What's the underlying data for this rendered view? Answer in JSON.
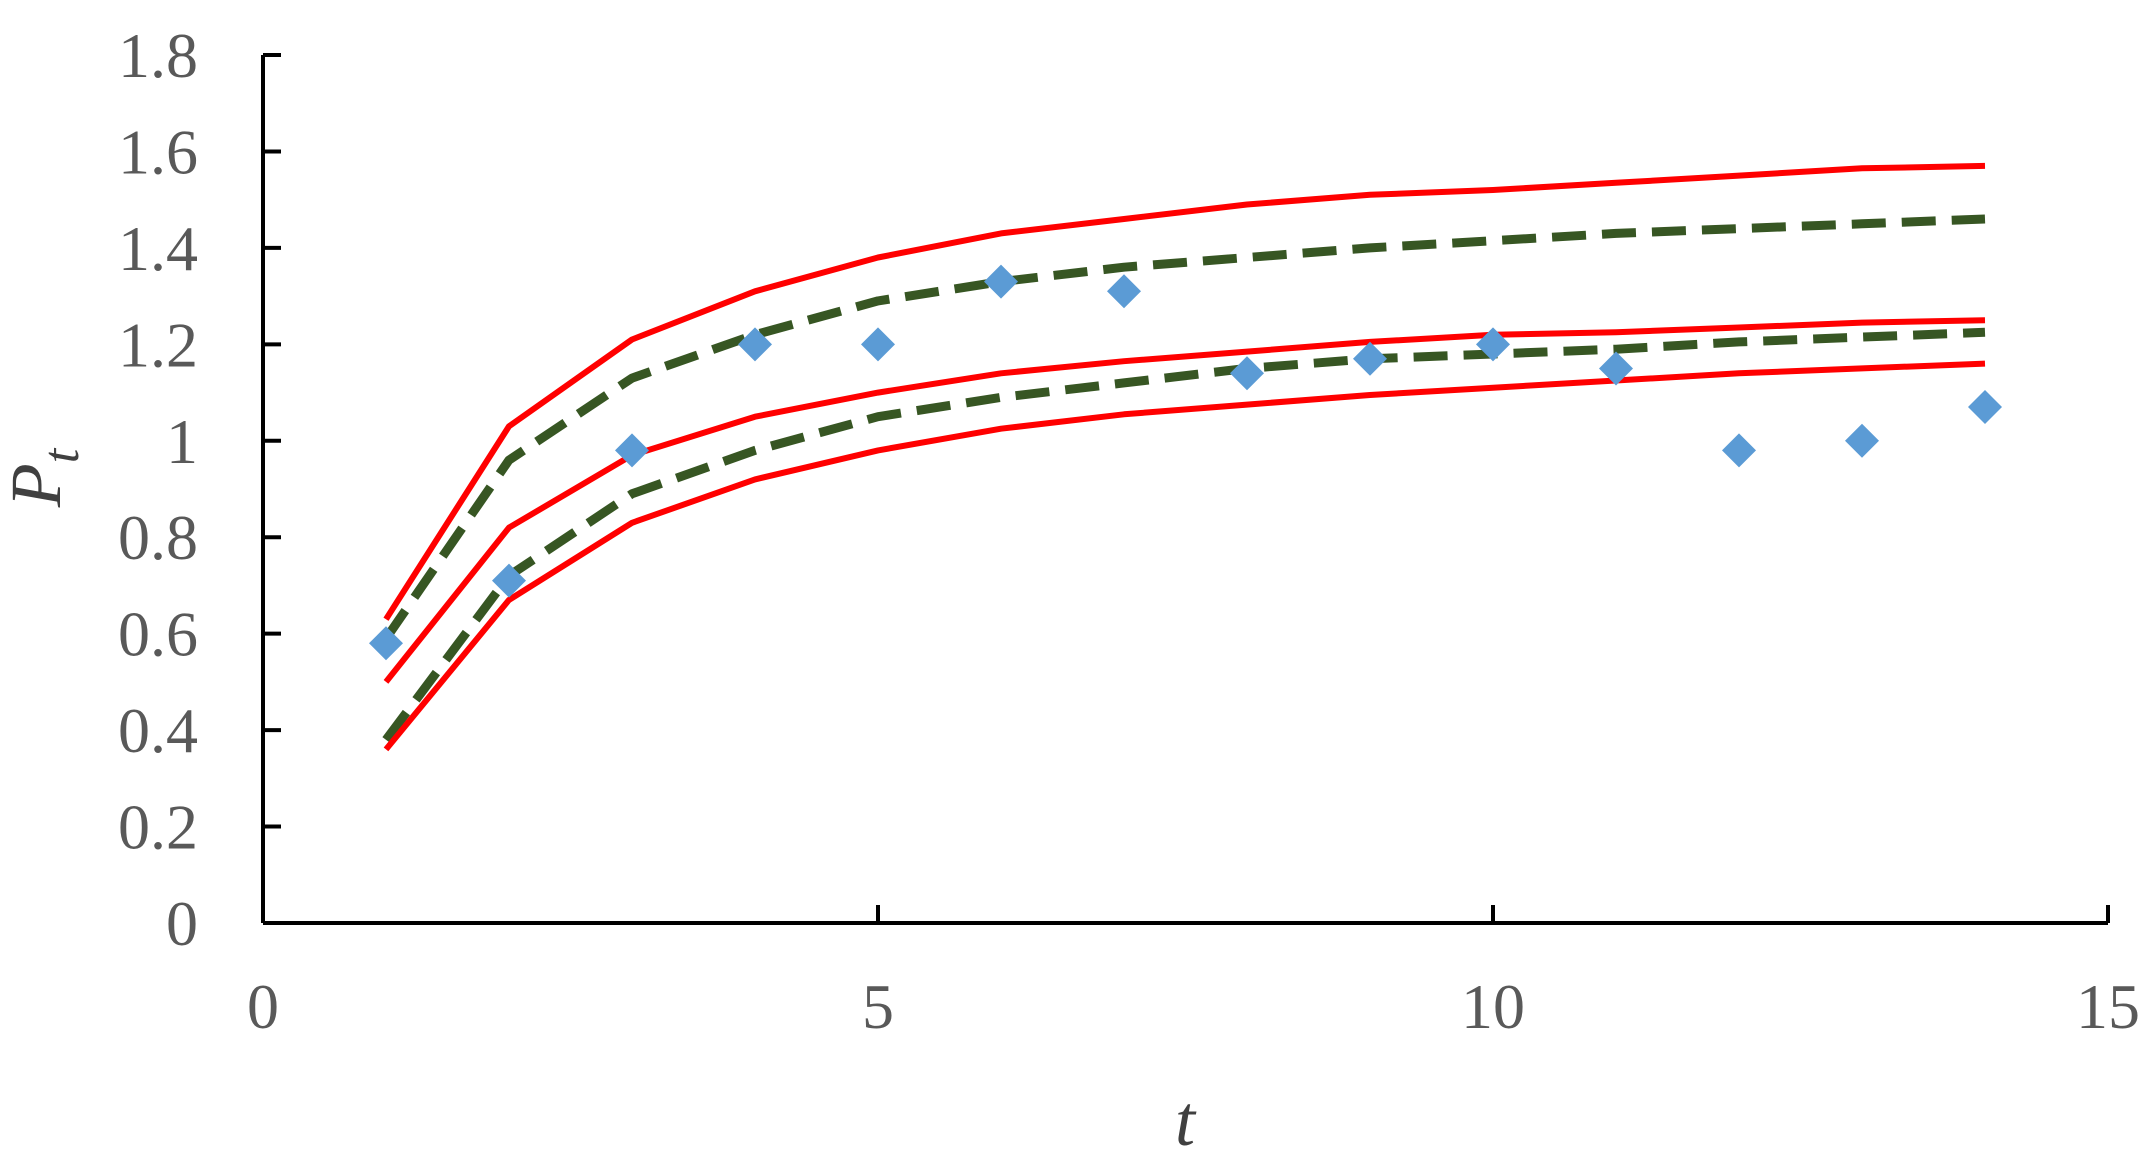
{
  "chart_data": {
    "type": "line",
    "title": "",
    "xlabel": "t",
    "ylabel": {
      "base": "P",
      "subscript": "t"
    },
    "xlim": [
      0,
      15
    ],
    "ylim": [
      0,
      1.8
    ],
    "xticks": [
      "0",
      "5",
      "10",
      "15"
    ],
    "yticks": [
      "0",
      "0.2",
      "0.4",
      "0.6",
      "0.8",
      "1",
      "1.2",
      "1.4",
      "1.6",
      "1.8"
    ],
    "grid": false,
    "legend": "none",
    "x": [
      1,
      2,
      3,
      4,
      5,
      6,
      7,
      8,
      9,
      10,
      11,
      12,
      13,
      14
    ],
    "series": [
      {
        "style": "solid",
        "color": "#ff0000",
        "values": [
          0.63,
          1.03,
          1.21,
          1.31,
          1.38,
          1.43,
          1.46,
          1.49,
          1.51,
          1.52,
          1.535,
          1.55,
          1.565,
          1.57
        ]
      },
      {
        "style": "dashed",
        "color": "#375623",
        "values": [
          0.59,
          0.96,
          1.13,
          1.22,
          1.29,
          1.33,
          1.36,
          1.38,
          1.4,
          1.415,
          1.43,
          1.44,
          1.45,
          1.46
        ]
      },
      {
        "style": "solid",
        "color": "#ff0000",
        "values": [
          0.5,
          0.82,
          0.97,
          1.05,
          1.1,
          1.14,
          1.165,
          1.185,
          1.205,
          1.22,
          1.225,
          1.235,
          1.245,
          1.25
        ]
      },
      {
        "style": "dashed",
        "color": "#375623",
        "values": [
          0.38,
          0.72,
          0.89,
          0.98,
          1.05,
          1.09,
          1.12,
          1.15,
          1.17,
          1.18,
          1.19,
          1.205,
          1.215,
          1.225
        ]
      },
      {
        "style": "solid",
        "color": "#ff0000",
        "values": [
          0.36,
          0.67,
          0.83,
          0.92,
          0.98,
          1.025,
          1.055,
          1.075,
          1.095,
          1.11,
          1.125,
          1.14,
          1.15,
          1.16
        ]
      },
      {
        "style": "markers",
        "marker": "diamond",
        "color": "#5b9bd5",
        "values": [
          0.58,
          0.71,
          0.98,
          1.2,
          1.2,
          1.33,
          1.31,
          1.14,
          1.17,
          1.2,
          1.15,
          0.98,
          1.0,
          1.07
        ]
      }
    ]
  }
}
